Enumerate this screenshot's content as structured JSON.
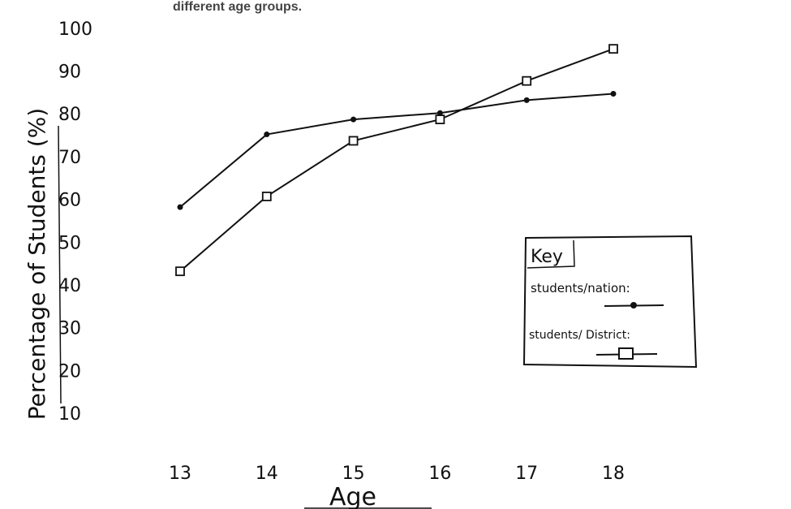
{
  "header_text": "different age groups.",
  "chart_data": {
    "type": "line",
    "title": "",
    "xlabel": "Age",
    "ylabel": "Percentage of Students (%)",
    "x": [
      13,
      14,
      15,
      16,
      17,
      18
    ],
    "x_tick_labels": [
      "13",
      "14",
      "15",
      "16",
      "17",
      "18"
    ],
    "y_tick_labels": [
      "100",
      "90",
      "80",
      "70",
      "60",
      "50",
      "40",
      "30",
      "20",
      "10"
    ],
    "ylim": [
      10,
      100
    ],
    "grid": false,
    "legend_title": "Key",
    "legend_placement": "right",
    "series": [
      {
        "name": "students/nation:",
        "marker": "dot",
        "values": [
          58,
          75,
          78.5,
          80,
          83,
          84.5
        ]
      },
      {
        "name": "students/ District:",
        "marker": "square",
        "values": [
          43,
          60.5,
          73.5,
          78.5,
          87.5,
          95
        ]
      }
    ],
    "colors": {
      "ink": "#111111"
    }
  }
}
